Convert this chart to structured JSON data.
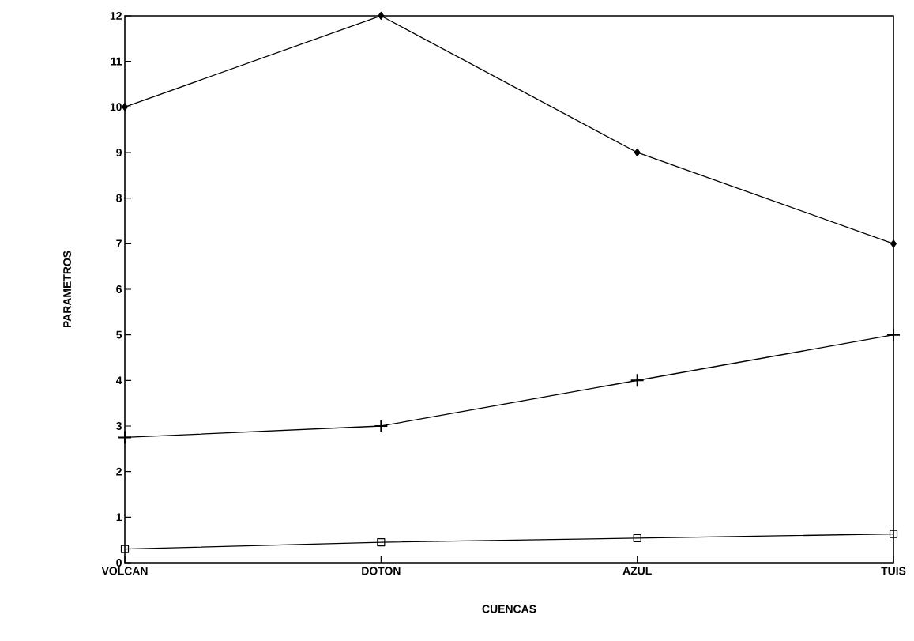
{
  "chart_data": {
    "type": "line",
    "xlabel": "CUENCAS",
    "ylabel": "PARAMETROS",
    "categories": [
      "VOLCAN",
      "DOTON",
      "AZUL",
      "TUIS"
    ],
    "series": [
      {
        "color": "#000000",
        "marker": "diamond",
        "values": [
          10,
          12,
          9,
          7
        ]
      },
      {
        "color": "#000000",
        "marker": "cross",
        "values": [
          2.75,
          3,
          4,
          5
        ]
      },
      {
        "color": "#000000",
        "marker": "square",
        "values": [
          0.3,
          0.45,
          0.54,
          0.63
        ]
      }
    ],
    "ylim": [
      0,
      12
    ],
    "yticks": [
      0,
      1,
      2,
      3,
      4,
      5,
      6,
      7,
      8,
      9,
      10,
      11,
      12
    ]
  }
}
